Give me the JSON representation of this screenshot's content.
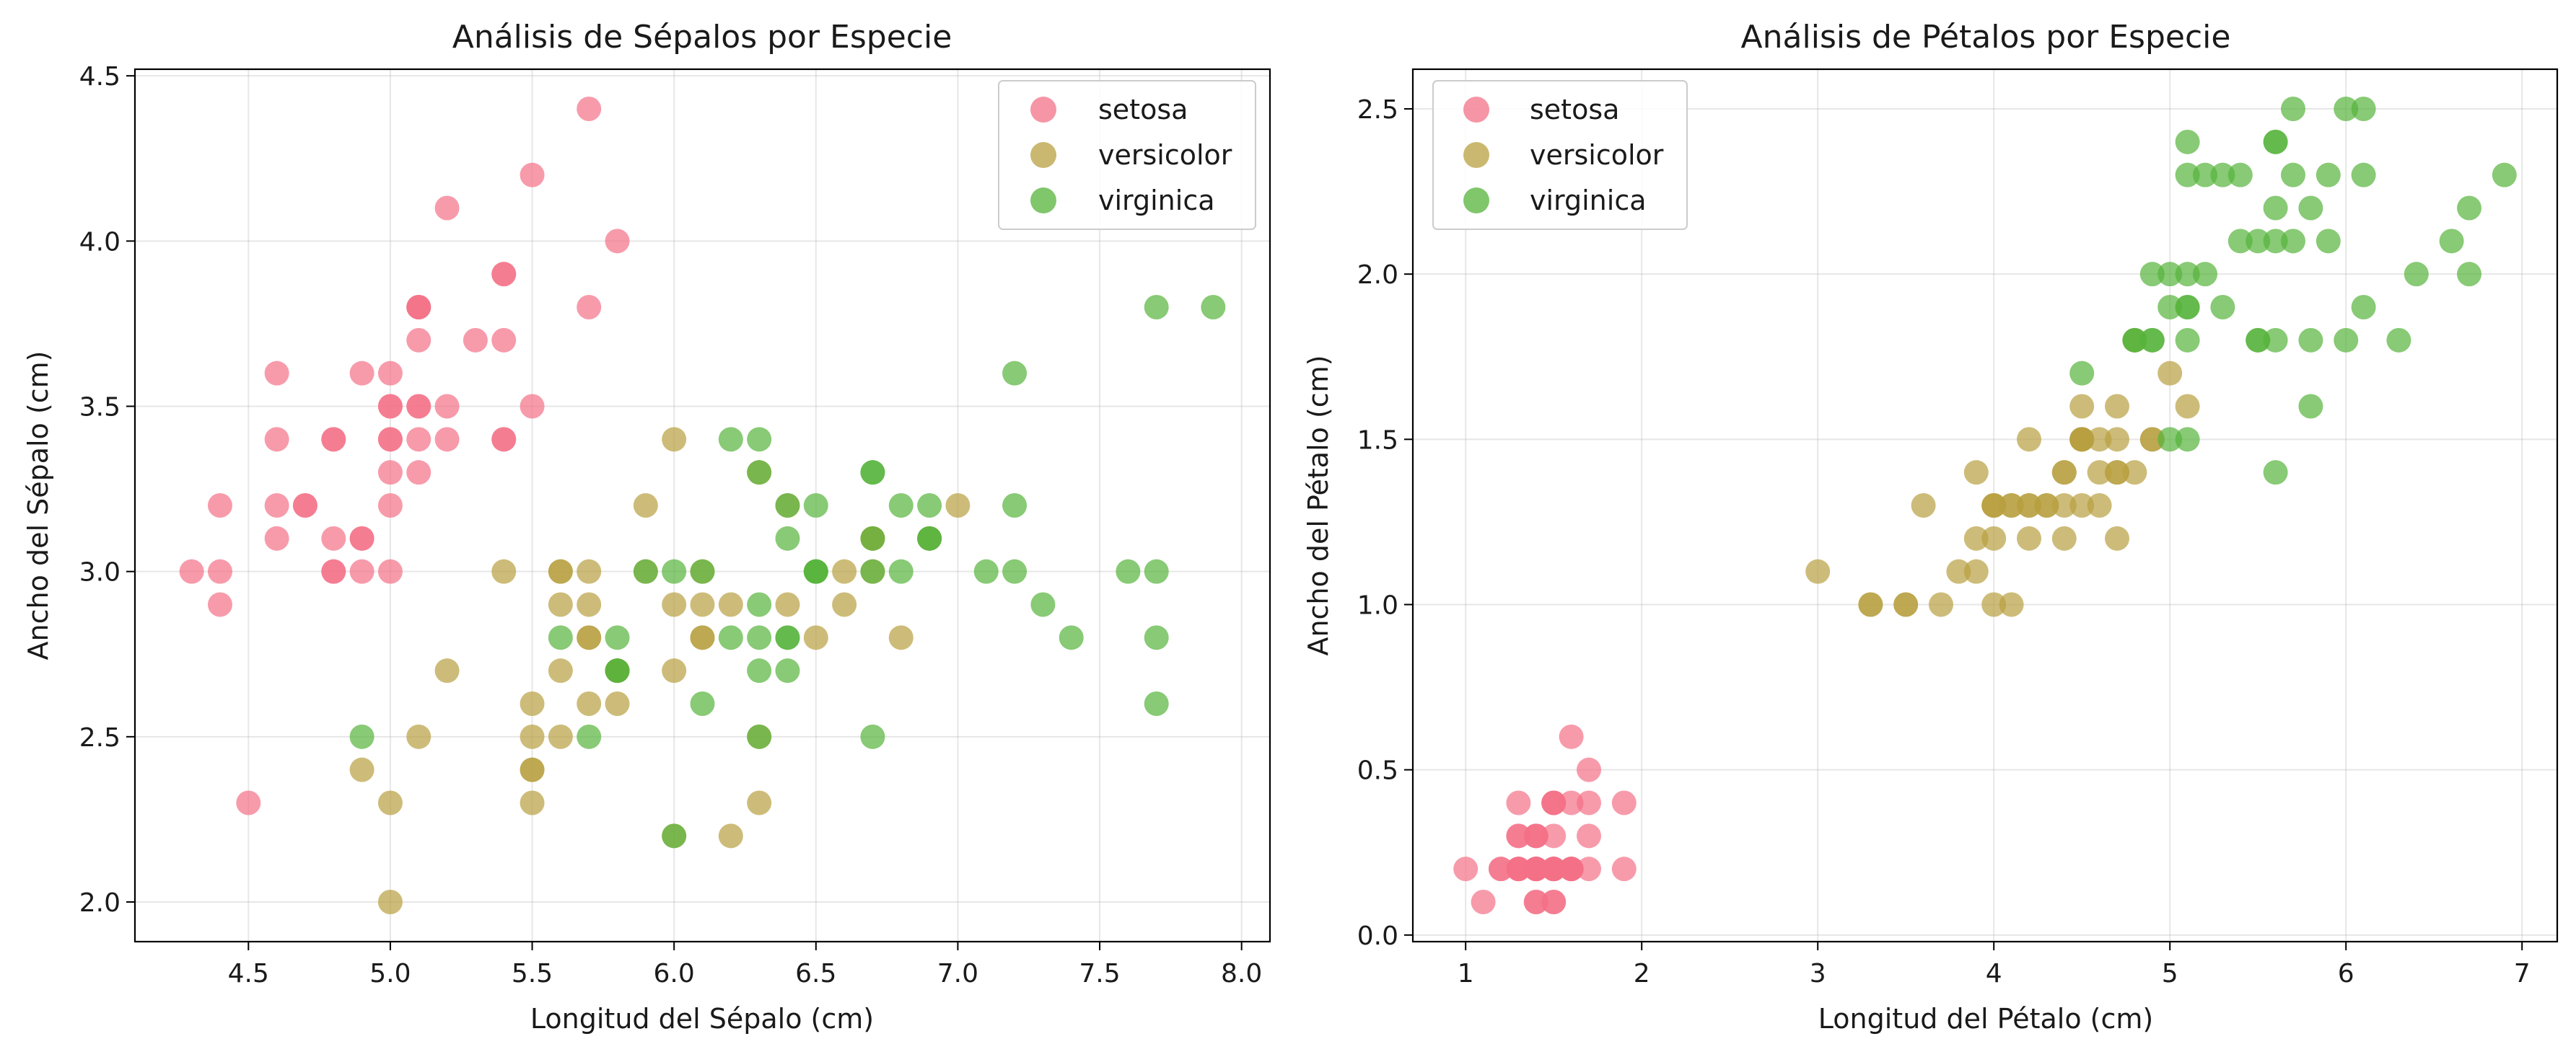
{
  "colors": {
    "setosa": "#f37187",
    "versicolor": "#b8a040",
    "virginica": "#55b33a"
  },
  "chart_data": [
    {
      "type": "scatter",
      "title": "Análisis de Sépalos por Especie",
      "xlabel": "Longitud del Sépalo (cm)",
      "ylabel": "Ancho del Sépalo (cm)",
      "xlim": [
        4.1,
        8.1
      ],
      "ylim": [
        1.88,
        4.52
      ],
      "xticks": [
        4.5,
        5.0,
        5.5,
        6.0,
        6.5,
        7.0,
        7.5,
        8.0
      ],
      "yticks": [
        2.0,
        2.5,
        3.0,
        3.5,
        4.0,
        4.5
      ],
      "xtick_labels": [
        "4.5",
        "5.0",
        "5.5",
        "6.0",
        "6.5",
        "7.0",
        "7.5",
        "8.0"
      ],
      "ytick_labels": [
        "2.0",
        "2.5",
        "3.0",
        "3.5",
        "4.0",
        "4.5"
      ],
      "grid": true,
      "legend": "upper right",
      "series": [
        {
          "name": "setosa",
          "x": [
            5.1,
            4.9,
            4.7,
            4.6,
            5.0,
            5.4,
            4.6,
            5.0,
            4.4,
            4.9,
            5.4,
            4.8,
            4.8,
            4.3,
            5.8,
            5.7,
            5.4,
            5.1,
            5.7,
            5.1,
            5.4,
            5.1,
            4.6,
            5.1,
            4.8,
            5.0,
            5.0,
            5.2,
            5.2,
            4.7,
            4.8,
            5.4,
            5.2,
            5.5,
            4.9,
            5.0,
            5.5,
            4.9,
            4.4,
            5.1,
            5.0,
            4.5,
            4.4,
            5.0,
            5.1,
            4.8,
            5.1,
            4.6,
            5.3,
            5.0
          ],
          "y": [
            3.5,
            3.0,
            3.2,
            3.1,
            3.6,
            3.9,
            3.4,
            3.4,
            2.9,
            3.1,
            3.7,
            3.4,
            3.0,
            3.0,
            4.0,
            4.4,
            3.9,
            3.5,
            3.8,
            3.8,
            3.4,
            3.7,
            3.6,
            3.3,
            3.4,
            3.0,
            3.4,
            3.5,
            3.4,
            3.2,
            3.1,
            3.4,
            4.1,
            4.2,
            3.1,
            3.2,
            3.5,
            3.6,
            3.0,
            3.4,
            3.5,
            2.3,
            3.2,
            3.5,
            3.8,
            3.0,
            3.8,
            3.2,
            3.7,
            3.3
          ]
        },
        {
          "name": "versicolor",
          "x": [
            7.0,
            6.4,
            6.9,
            5.5,
            6.5,
            5.7,
            6.3,
            4.9,
            6.6,
            5.2,
            5.0,
            5.9,
            6.0,
            6.1,
            5.6,
            6.7,
            5.6,
            5.8,
            6.2,
            5.6,
            5.9,
            6.1,
            6.3,
            6.1,
            6.4,
            6.6,
            6.8,
            6.7,
            6.0,
            5.7,
            5.5,
            5.5,
            5.8,
            6.0,
            5.4,
            6.0,
            6.7,
            6.3,
            5.6,
            5.5,
            5.5,
            6.1,
            5.8,
            5.0,
            5.6,
            5.7,
            5.7,
            6.2,
            5.1,
            5.7
          ],
          "y": [
            3.2,
            3.2,
            3.1,
            2.3,
            2.8,
            2.8,
            3.3,
            2.4,
            2.9,
            2.7,
            2.0,
            3.0,
            2.2,
            2.9,
            2.9,
            3.1,
            3.0,
            2.7,
            2.2,
            2.5,
            3.2,
            2.8,
            2.5,
            2.8,
            2.9,
            3.0,
            2.8,
            3.0,
            2.9,
            2.6,
            2.4,
            2.4,
            2.7,
            2.7,
            3.0,
            3.4,
            3.1,
            2.3,
            3.0,
            2.5,
            2.6,
            3.0,
            2.6,
            2.3,
            2.7,
            3.0,
            2.9,
            2.9,
            2.5,
            2.8
          ]
        },
        {
          "name": "virginica",
          "x": [
            6.3,
            5.8,
            7.1,
            6.3,
            6.5,
            7.6,
            4.9,
            7.3,
            6.7,
            7.2,
            6.5,
            6.4,
            6.8,
            5.7,
            5.8,
            6.4,
            6.5,
            7.7,
            7.7,
            6.0,
            6.9,
            5.6,
            7.7,
            6.3,
            6.7,
            7.2,
            6.2,
            6.1,
            6.4,
            7.2,
            7.4,
            7.9,
            6.4,
            6.3,
            6.1,
            7.7,
            6.3,
            6.4,
            6.0,
            6.9,
            6.7,
            6.9,
            5.8,
            6.8,
            6.7,
            6.7,
            6.3,
            6.5,
            6.2,
            5.9
          ],
          "y": [
            3.3,
            2.7,
            3.0,
            2.9,
            3.0,
            3.0,
            2.5,
            2.9,
            2.5,
            3.6,
            3.2,
            2.7,
            3.0,
            2.5,
            2.8,
            3.2,
            3.0,
            3.8,
            2.6,
            2.2,
            3.2,
            2.8,
            2.8,
            2.7,
            3.3,
            3.2,
            2.8,
            3.0,
            2.8,
            3.0,
            2.8,
            3.8,
            2.8,
            2.8,
            2.6,
            3.0,
            3.4,
            3.1,
            3.0,
            3.1,
            3.1,
            3.1,
            2.7,
            3.2,
            3.3,
            3.0,
            2.5,
            3.0,
            3.4,
            3.0
          ]
        }
      ]
    },
    {
      "type": "scatter",
      "title": "Análisis de Pétalos por Especie",
      "xlabel": "Longitud del Pétalo (cm)",
      "ylabel": "Ancho del Pétalo (cm)",
      "xlim": [
        0.7,
        7.2
      ],
      "ylim": [
        -0.02,
        2.62
      ],
      "xticks": [
        1,
        2,
        3,
        4,
        5,
        6,
        7
      ],
      "yticks": [
        0.0,
        0.5,
        1.0,
        1.5,
        2.0,
        2.5
      ],
      "xtick_labels": [
        "1",
        "2",
        "3",
        "4",
        "5",
        "6",
        "7"
      ],
      "ytick_labels": [
        "0.0",
        "0.5",
        "1.0",
        "1.5",
        "2.0",
        "2.5"
      ],
      "grid": true,
      "legend": "upper left",
      "series": [
        {
          "name": "setosa",
          "x": [
            1.4,
            1.4,
            1.3,
            1.5,
            1.4,
            1.7,
            1.4,
            1.5,
            1.4,
            1.5,
            1.5,
            1.6,
            1.4,
            1.1,
            1.2,
            1.5,
            1.3,
            1.4,
            1.7,
            1.5,
            1.7,
            1.5,
            1.0,
            1.7,
            1.9,
            1.6,
            1.6,
            1.5,
            1.4,
            1.6,
            1.6,
            1.5,
            1.5,
            1.4,
            1.5,
            1.2,
            1.3,
            1.4,
            1.3,
            1.5,
            1.3,
            1.3,
            1.3,
            1.6,
            1.9,
            1.4,
            1.6,
            1.4,
            1.5,
            1.4
          ],
          "y": [
            0.2,
            0.2,
            0.2,
            0.2,
            0.2,
            0.4,
            0.3,
            0.2,
            0.2,
            0.1,
            0.2,
            0.2,
            0.1,
            0.1,
            0.2,
            0.4,
            0.4,
            0.3,
            0.3,
            0.3,
            0.2,
            0.4,
            0.2,
            0.5,
            0.2,
            0.2,
            0.4,
            0.2,
            0.2,
            0.2,
            0.2,
            0.4,
            0.1,
            0.2,
            0.2,
            0.2,
            0.2,
            0.1,
            0.2,
            0.2,
            0.3,
            0.3,
            0.2,
            0.6,
            0.4,
            0.3,
            0.2,
            0.2,
            0.2,
            0.2
          ]
        },
        {
          "name": "versicolor",
          "x": [
            4.7,
            4.5,
            4.9,
            4.0,
            4.6,
            4.5,
            4.7,
            3.3,
            4.6,
            3.9,
            3.5,
            4.2,
            4.0,
            4.7,
            3.6,
            4.4,
            4.5,
            4.1,
            4.5,
            3.9,
            4.8,
            4.0,
            4.9,
            4.7,
            4.3,
            4.4,
            4.8,
            5.0,
            4.5,
            3.5,
            3.8,
            3.7,
            3.9,
            5.1,
            4.5,
            4.5,
            4.7,
            4.4,
            4.1,
            4.0,
            4.4,
            4.6,
            4.0,
            3.3,
            4.2,
            4.2,
            4.2,
            4.3,
            3.0,
            4.1
          ],
          "y": [
            1.4,
            1.5,
            1.5,
            1.3,
            1.5,
            1.3,
            1.6,
            1.0,
            1.3,
            1.4,
            1.0,
            1.5,
            1.0,
            1.4,
            1.3,
            1.4,
            1.5,
            1.0,
            1.5,
            1.1,
            1.8,
            1.3,
            1.5,
            1.2,
            1.3,
            1.4,
            1.4,
            1.7,
            1.5,
            1.0,
            1.1,
            1.0,
            1.2,
            1.6,
            1.5,
            1.6,
            1.5,
            1.3,
            1.3,
            1.3,
            1.2,
            1.4,
            1.2,
            1.0,
            1.3,
            1.2,
            1.3,
            1.3,
            1.1,
            1.3
          ]
        },
        {
          "name": "virginica",
          "x": [
            6.0,
            5.1,
            5.9,
            5.6,
            5.8,
            6.6,
            4.5,
            6.3,
            5.8,
            6.1,
            5.1,
            5.3,
            5.5,
            5.0,
            5.1,
            5.3,
            5.5,
            6.7,
            6.9,
            5.0,
            5.7,
            4.9,
            6.7,
            4.9,
            5.7,
            6.0,
            4.8,
            4.9,
            5.6,
            5.8,
            6.1,
            6.4,
            5.6,
            5.1,
            5.6,
            6.1,
            5.6,
            5.5,
            4.8,
            5.4,
            5.6,
            5.1,
            5.1,
            5.9,
            5.7,
            5.2,
            5.0,
            5.2,
            5.4,
            5.1
          ],
          "y": [
            2.5,
            1.9,
            2.1,
            1.8,
            2.2,
            2.1,
            1.7,
            1.8,
            1.8,
            2.5,
            2.0,
            1.9,
            2.1,
            2.0,
            2.4,
            2.3,
            1.8,
            2.2,
            2.3,
            1.5,
            2.3,
            2.0,
            2.0,
            1.8,
            2.1,
            1.8,
            1.8,
            1.8,
            2.1,
            1.6,
            1.9,
            2.0,
            2.2,
            1.5,
            1.4,
            2.3,
            2.4,
            1.8,
            1.8,
            2.1,
            2.4,
            2.3,
            1.9,
            2.3,
            2.5,
            2.3,
            1.9,
            2.0,
            2.3,
            1.8
          ]
        }
      ]
    }
  ]
}
